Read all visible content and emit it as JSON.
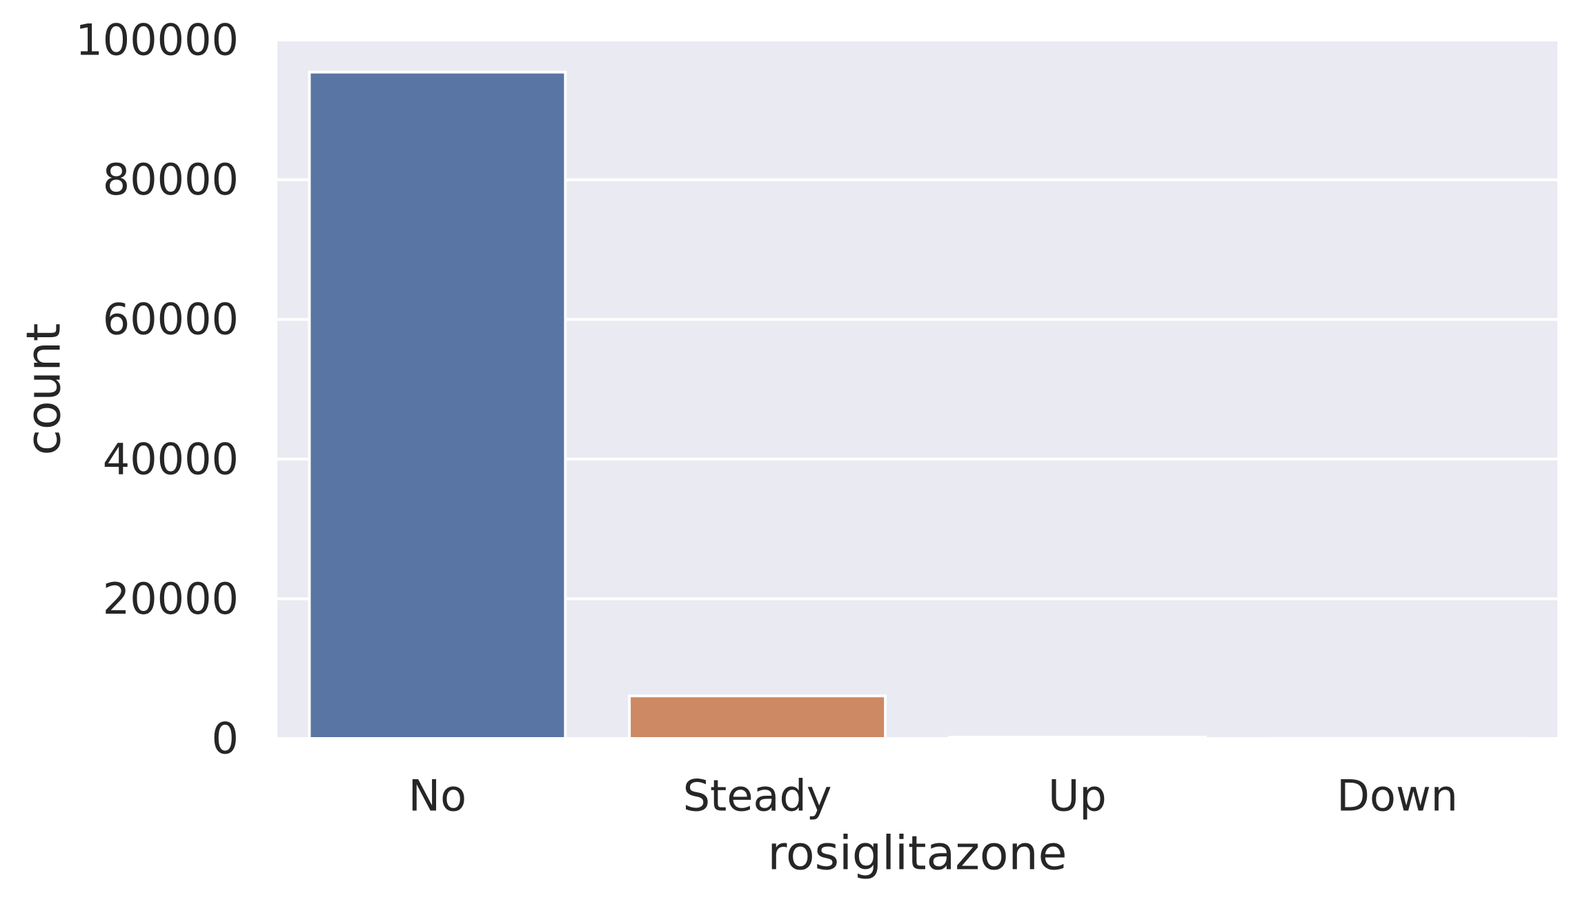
{
  "chart_data": {
    "type": "bar",
    "title": "",
    "xlabel": "rosiglitazone",
    "ylabel": "count",
    "categories": [
      "No",
      "Steady",
      "Up",
      "Down"
    ],
    "values": [
      95401,
      6100,
      178,
      13
    ],
    "ylim": [
      0,
      100000
    ],
    "yticks": [
      "0",
      "20000",
      "40000",
      "60000",
      "80000",
      "100000"
    ],
    "ytick_values": [
      0,
      20000,
      40000,
      60000,
      80000,
      100000
    ],
    "grid": true,
    "legend": "none",
    "colors": {
      "background": "#eaeaf2",
      "grid": "#ffffff",
      "bars": [
        "#5975a4",
        "#cc8963",
        "#5f9e6e",
        "#b55d60"
      ],
      "text": "#262626"
    }
  }
}
